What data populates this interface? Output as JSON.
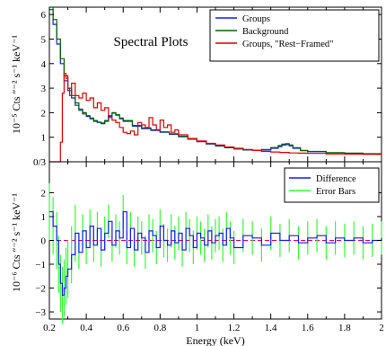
{
  "chart_data": [
    {
      "type": "line",
      "title": "Spectral Plots",
      "ylabel": "10⁻⁵ Cts ″⁻² s⁻¹ keV⁻¹",
      "xlim": [
        0.2,
        2.0
      ],
      "ylim": [
        0,
        6.3
      ],
      "yticks": [
        1,
        2,
        3,
        4,
        5,
        6
      ],
      "ytick_labels": [
        "1",
        "2",
        "3",
        "4",
        "5",
        "6"
      ],
      "bottom_label": "0/3",
      "colors": {
        "Groups": "#1a1aff",
        "Background": "#006400",
        "Groups, \"Rest−Framed\"": "#e00000"
      },
      "legend_position": "top-right",
      "legend": [
        "Groups",
        "Background",
        "Groups, \"Rest−Framed\""
      ],
      "series": [
        {
          "name": "Groups",
          "x": [
            0.2,
            0.22,
            0.24,
            0.26,
            0.28,
            0.3,
            0.32,
            0.34,
            0.36,
            0.38,
            0.4,
            0.42,
            0.44,
            0.46,
            0.48,
            0.5,
            0.52,
            0.54,
            0.56,
            0.58,
            0.6,
            0.65,
            0.7,
            0.75,
            0.8,
            0.85,
            0.9,
            0.95,
            1.0,
            1.05,
            1.1,
            1.15,
            1.2,
            1.25,
            1.3,
            1.35,
            1.4,
            1.44,
            1.46,
            1.48,
            1.5,
            1.52,
            1.56,
            1.6,
            1.7,
            1.8,
            1.9,
            2.0
          ],
          "y": [
            6.2,
            5.6,
            4.8,
            4.0,
            3.3,
            2.9,
            2.6,
            2.3,
            2.1,
            1.95,
            1.85,
            1.75,
            1.65,
            1.6,
            1.55,
            1.65,
            1.85,
            1.98,
            1.9,
            1.75,
            1.65,
            1.45,
            1.35,
            1.28,
            1.2,
            1.12,
            1.02,
            0.92,
            0.82,
            0.72,
            0.64,
            0.57,
            0.52,
            0.48,
            0.46,
            0.48,
            0.55,
            0.62,
            0.68,
            0.7,
            0.65,
            0.55,
            0.45,
            0.41,
            0.36,
            0.34,
            0.32,
            0.31
          ]
        },
        {
          "name": "Background",
          "x": [
            0.2,
            0.22,
            0.24,
            0.26,
            0.28,
            0.3,
            0.32,
            0.34,
            0.36,
            0.38,
            0.4,
            0.42,
            0.44,
            0.46,
            0.48,
            0.5,
            0.52,
            0.54,
            0.56,
            0.58,
            0.6,
            0.65,
            0.7,
            0.75,
            0.8,
            0.85,
            0.9,
            0.95,
            1.0,
            1.05,
            1.1,
            1.15,
            1.2,
            1.25,
            1.3,
            1.35,
            1.4,
            1.44,
            1.46,
            1.48,
            1.5,
            1.52,
            1.56,
            1.6,
            1.7,
            1.8,
            1.9,
            2.0
          ],
          "y": [
            6.3,
            5.8,
            5.0,
            4.2,
            3.5,
            3.0,
            2.7,
            2.4,
            2.15,
            2.0,
            1.88,
            1.78,
            1.68,
            1.62,
            1.58,
            1.68,
            1.88,
            2.0,
            1.92,
            1.78,
            1.68,
            1.48,
            1.38,
            1.3,
            1.22,
            1.14,
            1.04,
            0.94,
            0.84,
            0.74,
            0.66,
            0.58,
            0.53,
            0.49,
            0.47,
            0.5,
            0.58,
            0.66,
            0.72,
            0.74,
            0.68,
            0.57,
            0.46,
            0.42,
            0.37,
            0.35,
            0.33,
            0.32
          ]
        },
        {
          "name": "Groups, \"Rest−Framed\"",
          "x": [
            0.2,
            0.25,
            0.26,
            0.27,
            0.28,
            0.29,
            0.3,
            0.31,
            0.32,
            0.34,
            0.36,
            0.38,
            0.4,
            0.42,
            0.44,
            0.46,
            0.48,
            0.5,
            0.52,
            0.54,
            0.56,
            0.58,
            0.6,
            0.62,
            0.64,
            0.66,
            0.68,
            0.7,
            0.72,
            0.74,
            0.76,
            0.78,
            0.8,
            0.82,
            0.84,
            0.86,
            0.88,
            0.9,
            0.95,
            1.0,
            1.05,
            1.1,
            1.15,
            1.2,
            1.25,
            1.3,
            1.35,
            1.4,
            1.45,
            1.5,
            1.55,
            1.6,
            1.7,
            1.8,
            1.9,
            2.0
          ],
          "y": [
            0.0,
            0.0,
            0.8,
            2.8,
            3.6,
            3.4,
            3.0,
            2.7,
            3.2,
            2.7,
            2.6,
            2.8,
            2.5,
            2.6,
            2.2,
            2.4,
            2.1,
            2.2,
            1.8,
            1.7,
            1.6,
            1.4,
            1.2,
            1.15,
            1.25,
            1.1,
            1.6,
            1.5,
            1.4,
            1.8,
            1.5,
            1.3,
            1.7,
            1.4,
            1.5,
            1.2,
            1.3,
            1.1,
            0.95,
            0.85,
            0.75,
            0.68,
            0.6,
            0.55,
            0.5,
            0.46,
            0.42,
            0.4,
            0.38,
            0.36,
            0.35,
            0.34,
            0.32,
            0.31,
            0.3,
            0.29
          ]
        }
      ]
    },
    {
      "type": "line",
      "ylabel": "10⁻⁶ Cts ″⁻² s⁻¹ keV⁻¹",
      "xlabel": "Energy (keV)",
      "xlim": [
        0.2,
        2.0
      ],
      "ylim": [
        -3.3,
        3.3
      ],
      "xticks": [
        0.2,
        0.4,
        0.6,
        0.8,
        1.0,
        1.2,
        1.4,
        1.6,
        1.8,
        2.0
      ],
      "xtick_labels": [
        "0.2",
        "0.4",
        "0.6",
        "0.8",
        "1",
        "1.2",
        "1.4",
        "1.6",
        "1.8",
        "2"
      ],
      "yticks": [
        -3,
        -2,
        -1,
        0,
        1,
        2
      ],
      "ytick_labels": [
        "−3",
        "−2",
        "−1",
        "0",
        "1",
        "2"
      ],
      "zero_line": true,
      "colors": {
        "Difference": "#1a1aff",
        "Error Bars": "#33ff33",
        "zero": "#e00060"
      },
      "legend_position": "top-right",
      "legend": [
        "Difference",
        "Error Bars"
      ],
      "series": [
        {
          "name": "Difference",
          "x": [
            0.2,
            0.22,
            0.24,
            0.25,
            0.26,
            0.27,
            0.28,
            0.29,
            0.3,
            0.32,
            0.34,
            0.36,
            0.38,
            0.4,
            0.42,
            0.44,
            0.46,
            0.48,
            0.5,
            0.52,
            0.54,
            0.56,
            0.58,
            0.6,
            0.62,
            0.64,
            0.66,
            0.68,
            0.7,
            0.72,
            0.74,
            0.76,
            0.78,
            0.8,
            0.82,
            0.84,
            0.86,
            0.88,
            0.9,
            0.92,
            0.94,
            0.96,
            0.98,
            1.0,
            1.02,
            1.04,
            1.06,
            1.08,
            1.1,
            1.12,
            1.14,
            1.16,
            1.18,
            1.2,
            1.25,
            1.3,
            1.35,
            1.4,
            1.45,
            1.5,
            1.55,
            1.6,
            1.65,
            1.7,
            1.75,
            1.8,
            1.85,
            1.9,
            1.95,
            2.0
          ],
          "y": [
            1.2,
            0.6,
            0.0,
            -1.0,
            -1.8,
            -2.3,
            -2.0,
            -1.5,
            -1.2,
            -0.6,
            0.3,
            -0.5,
            0.4,
            -0.3,
            0.6,
            -0.2,
            0.5,
            -0.4,
            0.3,
            0.8,
            -0.2,
            0.4,
            0.1,
            1.2,
            -0.3,
            0.5,
            -0.4,
            0.3,
            0.1,
            -0.5,
            0.4,
            0.2,
            -0.3,
            0.6,
            0.0,
            -0.2,
            0.4,
            -0.1,
            0.3,
            -0.4,
            0.5,
            0.2,
            -0.3,
            0.3,
            0.1,
            -0.2,
            0.4,
            -0.1,
            0.2,
            0.3,
            -0.2,
            0.5,
            0.1,
            -0.3,
            0.2,
            0.1,
            -0.2,
            0.3,
            0.0,
            0.2,
            -0.1,
            0.1,
            0.2,
            -0.1,
            0.1,
            0.0,
            0.1,
            -0.1,
            0.0,
            0.1
          ]
        }
      ]
    }
  ]
}
